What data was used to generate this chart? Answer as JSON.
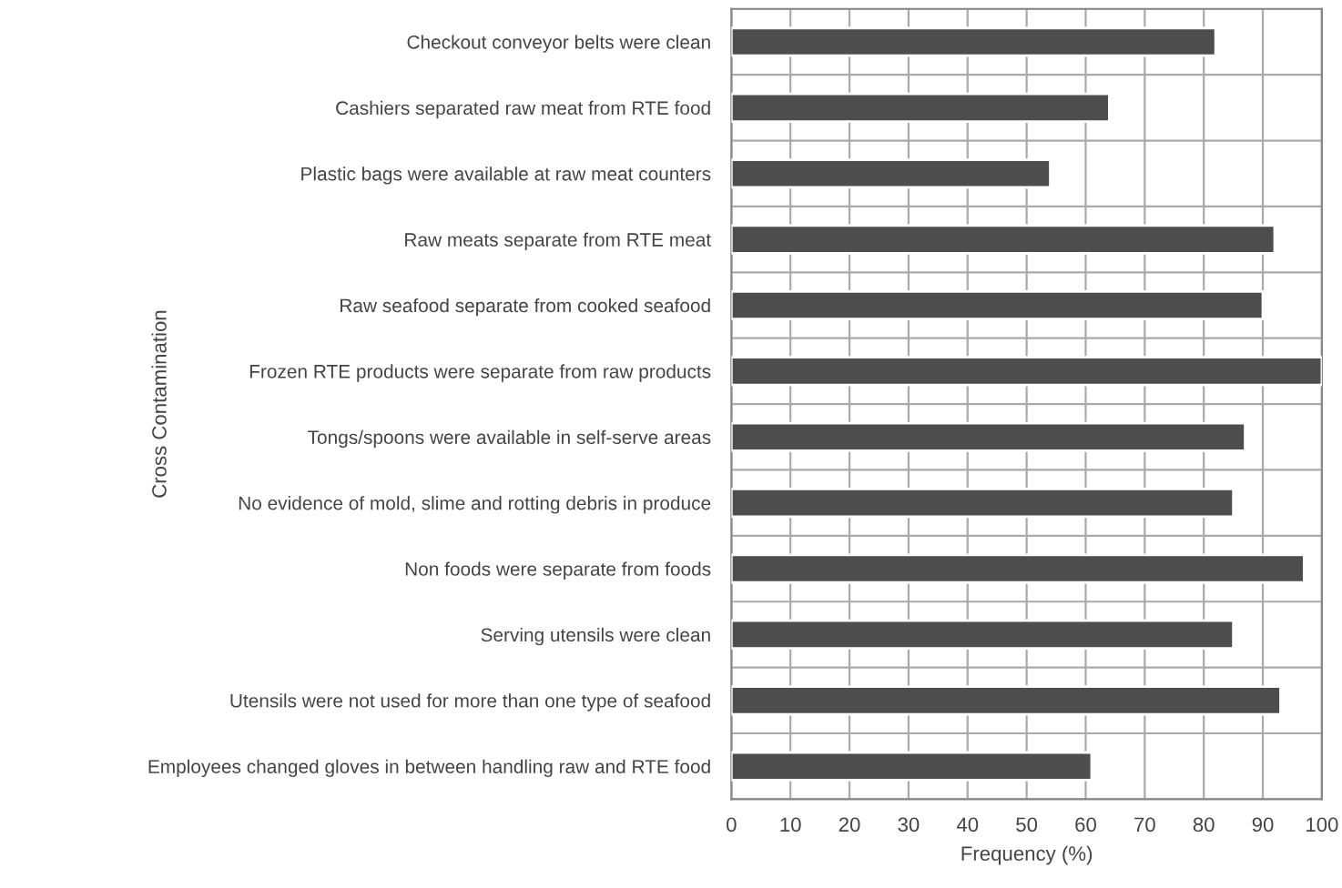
{
  "chart_data": {
    "type": "bar",
    "orientation": "horizontal",
    "ylabel": "Cross Contamination",
    "xlabel": "Frequency (%)",
    "categories": [
      "Checkout conveyor belts were clean",
      "Cashiers separated raw meat from RTE food",
      "Plastic bags were available at raw meat counters",
      "Raw meats separate from RTE meat",
      "Raw seafood separate from cooked seafood",
      "Frozen RTE products were separate from raw products",
      "Tongs/spoons were available in self-serve areas",
      "No evidence of mold, slime and rotting debris in produce",
      "Non foods were separate from foods",
      "Serving utensils were clean",
      "Utensils were not used for more than one type of seafood",
      "Employees changed gloves in between handling raw and RTE food"
    ],
    "values": [
      82,
      64,
      54,
      92,
      90,
      100,
      87,
      85,
      97,
      85,
      93,
      61
    ],
    "color": "#4d4d4d",
    "xlim": [
      0,
      100
    ],
    "xticks": [
      0,
      10,
      20,
      30,
      40,
      50,
      60,
      70,
      80,
      90,
      100
    ],
    "grid": true
  }
}
